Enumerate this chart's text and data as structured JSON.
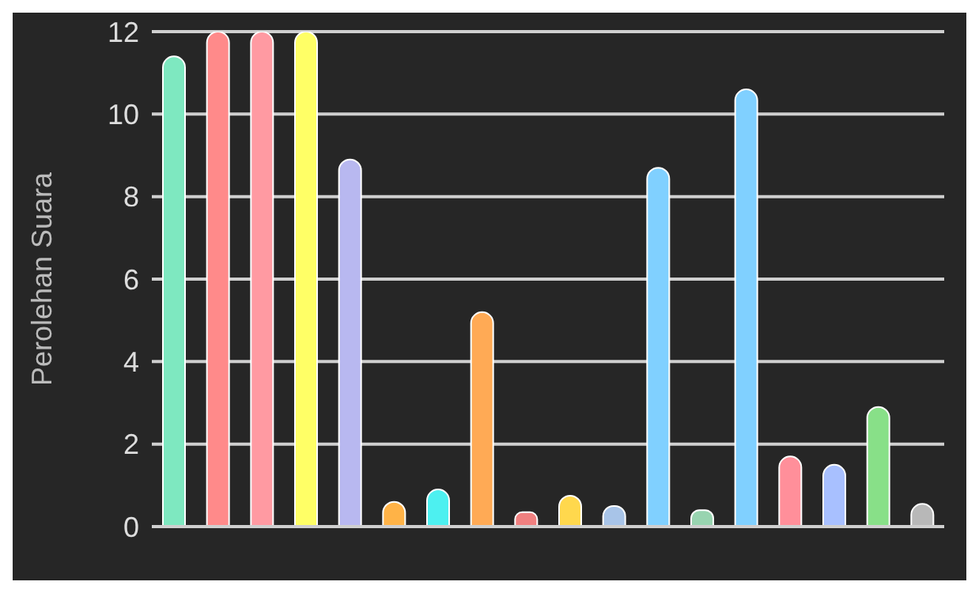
{
  "chart_data": {
    "type": "bar",
    "ylabel": "Perolehan Suara",
    "categories": [
      null,
      null,
      null,
      null,
      null,
      null,
      null,
      null,
      null,
      null,
      null,
      null,
      null,
      null,
      null,
      null,
      null,
      null
    ],
    "values": [
      11.4,
      12,
      12,
      12,
      8.9,
      0.6,
      0.9,
      5.2,
      0.35,
      0.75,
      0.5,
      8.7,
      0.4,
      10.6,
      1.7,
      1.5,
      2.9,
      0.55
    ],
    "colors": [
      "#7ee8c0",
      "#ff8a8a",
      "#ff9aa2",
      "#ffff66",
      "#b8b8f0",
      "#ffb347",
      "#4df0f0",
      "#ffaa55",
      "#f08080",
      "#ffd84d",
      "#a8c4e8",
      "#80d0ff",
      "#98d4b0",
      "#80d0ff",
      "#ff8f9a",
      "#a8c0ff",
      "#88e088",
      "#b8b8b8"
    ],
    "ylim": [
      0,
      12
    ],
    "yticks": [
      0,
      2,
      4,
      6,
      8,
      10,
      12
    ],
    "grid": "y",
    "legend": false
  }
}
